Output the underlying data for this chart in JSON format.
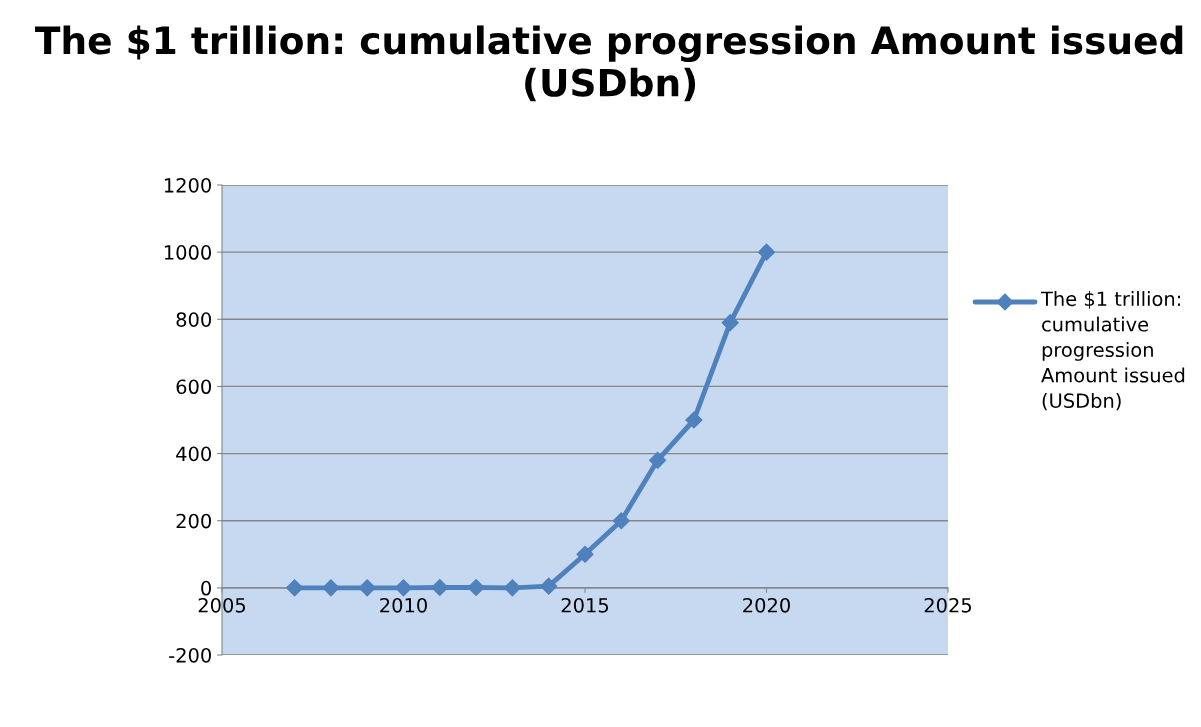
{
  "chart_data": {
    "type": "line",
    "title": "The $1 trillion: cumulative progression Amount issued (USDbn)",
    "x": [
      2007,
      2008,
      2009,
      2010,
      2011,
      2012,
      2013,
      2014,
      2015,
      2016,
      2017,
      2018,
      2019,
      2020
    ],
    "series": [
      {
        "name": "The $1 trillion: cumulative progression Amount issued (USDbn)",
        "color": "#4f81bd",
        "values": [
          0,
          0,
          0,
          0,
          1,
          1,
          0,
          5,
          100,
          200,
          380,
          500,
          790,
          1000
        ]
      }
    ],
    "xlim": [
      2005,
      2025
    ],
    "xticks": [
      2005,
      2010,
      2015,
      2020,
      2025
    ],
    "ylim": [
      -200,
      1200
    ],
    "yticks": [
      -200,
      0,
      200,
      400,
      600,
      800,
      1000,
      1200
    ],
    "grid": "y",
    "legend": "right",
    "marker": "diamond",
    "line_style": "solid"
  }
}
